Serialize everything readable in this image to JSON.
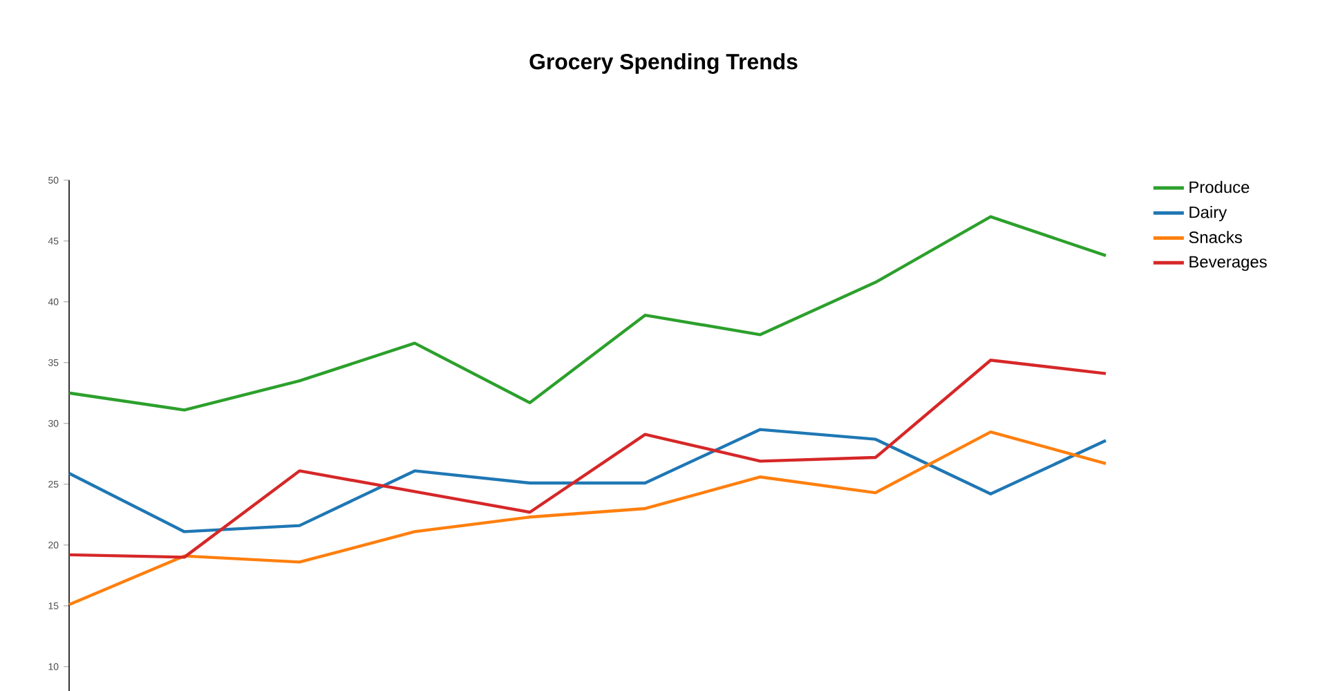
{
  "chart_data": {
    "type": "line",
    "title": "Grocery Spending Trends",
    "categories": [
      null,
      null,
      null,
      null,
      null,
      null,
      null,
      null,
      null,
      null
    ],
    "series": [
      {
        "name": "Produce",
        "color": "#2ca02c",
        "values": [
          32.5,
          31.1,
          33.5,
          36.6,
          31.7,
          38.9,
          37.3,
          41.6,
          47.0,
          43.8
        ]
      },
      {
        "name": "Dairy",
        "color": "#1f77b4",
        "values": [
          25.9,
          21.1,
          21.6,
          26.1,
          25.1,
          25.1,
          29.5,
          28.7,
          24.2,
          28.6
        ]
      },
      {
        "name": "Snacks",
        "color": "#ff7f0e",
        "values": [
          15.1,
          19.1,
          18.6,
          21.1,
          22.3,
          23.0,
          25.6,
          24.3,
          29.3,
          26.7
        ]
      },
      {
        "name": "Beverages",
        "color": "#d62728",
        "values": [
          19.2,
          19.0,
          26.1,
          24.4,
          22.7,
          29.1,
          26.9,
          27.2,
          35.2,
          34.1
        ]
      }
    ],
    "ylim": [
      8,
      50
    ],
    "yticks": [
      10,
      15,
      20,
      25,
      30,
      35,
      40,
      45,
      50
    ],
    "tick_labels": "y",
    "legend": "top right",
    "grid": false,
    "marker": "none",
    "line_style": "solid"
  }
}
